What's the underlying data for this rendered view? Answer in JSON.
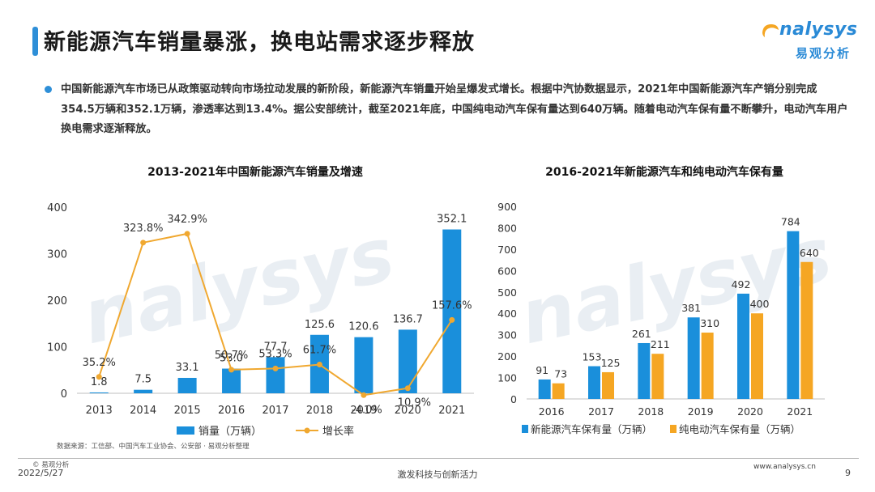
{
  "header": {
    "title": "新能源汽车销量暴涨，换电站需求逐步释放",
    "logo_word": "nalysys",
    "logo_cn": "易观分析"
  },
  "intro": "中国新能源汽车市场已从政策驱动转向市场拉动发展的新阶段，新能源汽车销量开始呈爆发式增长。根据中汽协数据显示，2021年中国新能源汽车产销分别完成354.5万辆和352.1万辆，渗透率达到13.4%。据公安部统计，截至2021年底，中国纯电动汽车保有量达到640万辆。随着电动汽车保有量不断攀升，电动汽车用户换电需求逐渐释放。",
  "left_chart_title": "2013-2021年中国新能源汽车销量及增速",
  "right_chart_title": "2016-2021年新能源汽车和纯电动汽车保有量",
  "source": "数据来源：工信部、中国汽车工业协会、公安部 · 易观分析整理",
  "footer": {
    "copyright": "© 易观分析",
    "date": "2022/5/27",
    "slogan": "激发科技与创新活力",
    "site": "www.analysys.cn",
    "page": "9"
  },
  "colors": {
    "blue": "#1a8fdb",
    "orange": "#f5a623",
    "line": "#f0a830"
  },
  "chart_data": [
    {
      "type": "bar",
      "title": "2013-2021年中国新能源汽车销量及增速",
      "categories": [
        "2013",
        "2014",
        "2015",
        "2016",
        "2017",
        "2018",
        "2019",
        "2020",
        "2021"
      ],
      "ylim": [
        0,
        400
      ],
      "yticks": [
        "0",
        "100",
        "200",
        "300",
        "400"
      ],
      "series": [
        {
          "name": "销量（万辆）",
          "type": "bar",
          "values": [
            1.8,
            7.5,
            33.1,
            53.0,
            77.7,
            125.6,
            120.6,
            136.7,
            352.1
          ],
          "labels": [
            "1.8",
            "7.5",
            "33.1",
            "53.0",
            "77.7",
            "125.6",
            "120.6",
            "136.7",
            "352.1"
          ]
        },
        {
          "name": "增长率",
          "type": "line",
          "values": [
            35.2,
            323.8,
            342.9,
            50.7,
            53.3,
            61.7,
            -4.0,
            10.9,
            157.6
          ],
          "labels": [
            "35.2%",
            "323.8%",
            "342.9%",
            "50.7%",
            "53.3%",
            "61.7%",
            "-4.0%",
            "10.9%",
            "157.6%"
          ]
        }
      ],
      "grid": false,
      "legend_position": "bottom"
    },
    {
      "type": "bar",
      "title": "2016-2021年新能源汽车和纯电动汽车保有量",
      "categories": [
        "2016",
        "2017",
        "2018",
        "2019",
        "2020",
        "2021"
      ],
      "ylim": [
        0,
        900
      ],
      "yticks": [
        "0",
        "100",
        "200",
        "300",
        "400",
        "500",
        "600",
        "700",
        "800",
        "900"
      ],
      "series": [
        {
          "name": "新能源汽车保有量（万辆）",
          "values": [
            91,
            153,
            261,
            381,
            492,
            784
          ],
          "labels": [
            "91",
            "153",
            "261",
            "381",
            "492",
            "784"
          ]
        },
        {
          "name": "纯电动汽车保有量（万辆）",
          "values": [
            73,
            125,
            211,
            310,
            400,
            640
          ],
          "labels": [
            "73",
            "125",
            "211",
            "310",
            "400",
            "640"
          ]
        }
      ],
      "grid": false,
      "legend_position": "bottom"
    }
  ]
}
